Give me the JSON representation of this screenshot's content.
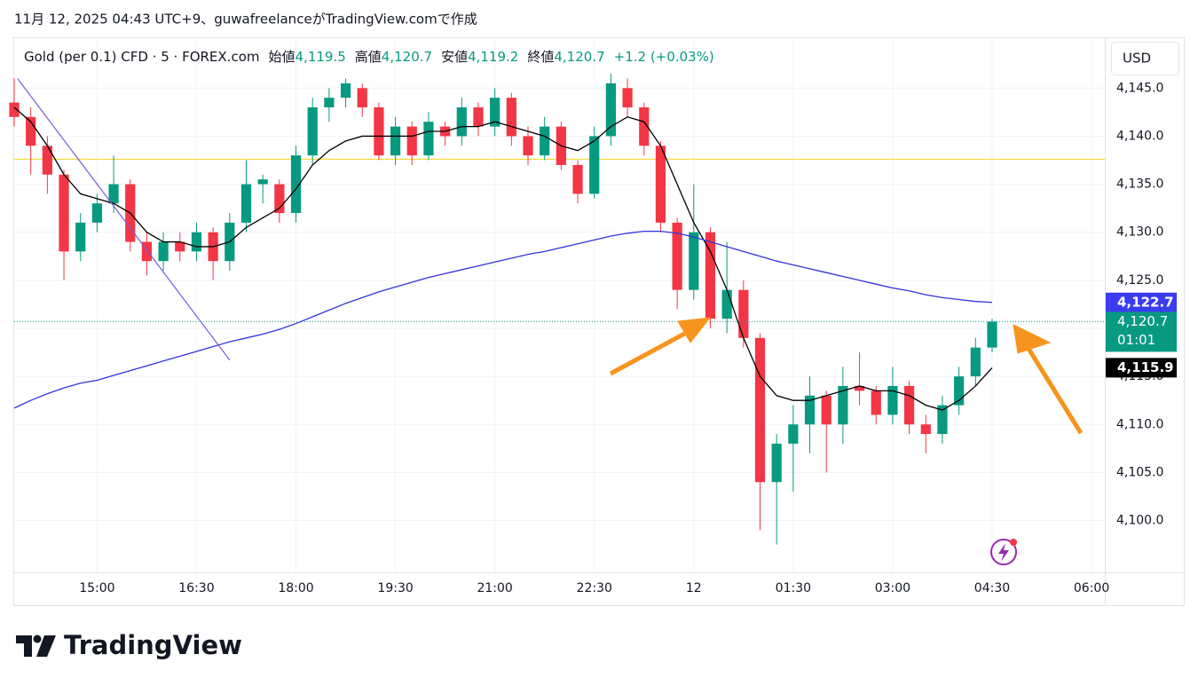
{
  "header": {
    "caption": "11月 12, 2025 04:43 UTC+9、guwafreelanceがTradingView.comで作成"
  },
  "chart_data": {
    "type": "candlestick",
    "title": "Gold (per 0.1) CFD · 5 · FOREX.com",
    "ohlc_legend": [
      {
        "label": "始値",
        "value": "4,119.5"
      },
      {
        "label": "高値",
        "value": "4,120.7"
      },
      {
        "label": "安値",
        "value": "4,119.2"
      },
      {
        "label": "終値",
        "value": "4,120.7"
      }
    ],
    "change": "+1.2 (+0.03%)",
    "currency": "USD",
    "open": [
      4143.5,
      4142,
      4139,
      4136,
      4128,
      4131,
      4133,
      4135,
      4129,
      4127,
      4129,
      4128,
      4130,
      4127,
      4131,
      4135,
      4135,
      4132,
      4138,
      4143,
      4144,
      4145,
      4143,
      4138,
      4141,
      4138,
      4141,
      4140,
      4143,
      4141,
      4144,
      4140,
      4138,
      4141,
      4137,
      4134,
      4140,
      4145,
      4143,
      4139,
      4131,
      4124,
      4130,
      4121,
      4124,
      4119,
      4104,
      4108,
      4110,
      4113,
      4110,
      4114,
      4113.5,
      4111,
      4114,
      4110,
      4109,
      4112,
      4115,
      4118
    ],
    "high": [
      4146,
      4143,
      4140,
      4136.5,
      4132,
      4134,
      4138,
      4135.5,
      4130,
      4130,
      4130,
      4131,
      4130.5,
      4132,
      4137.5,
      4136,
      4135.5,
      4139,
      4144,
      4145,
      4146,
      4145.5,
      4143.5,
      4142,
      4141.5,
      4142.5,
      4141.5,
      4144,
      4143.5,
      4145,
      4144.5,
      4141,
      4142,
      4141.5,
      4137.5,
      4141,
      4146.5,
      4146,
      4143.5,
      4139.5,
      4131.5,
      4135,
      4130.5,
      4129,
      4125,
      4119.5,
      4109,
      4112,
      4115,
      4113.5,
      4116,
      4117.5,
      4114,
      4116,
      4114.5,
      4111,
      4113,
      4116,
      4119,
      4121
    ],
    "low": [
      4141,
      4136,
      4134,
      4125,
      4127,
      4130,
      4132,
      4128,
      4125.5,
      4126,
      4127,
      4127,
      4125,
      4126,
      4130,
      4133,
      4131,
      4131,
      4137,
      4141.5,
      4143,
      4142,
      4137.5,
      4137,
      4137,
      4137.5,
      4139,
      4139,
      4140,
      4140,
      4139,
      4137,
      4137.5,
      4136.5,
      4133,
      4133.5,
      4139,
      4142,
      4138,
      4130,
      4122,
      4123,
      4120,
      4119.5,
      4118,
      4099,
      4097.5,
      4103,
      4107,
      4105,
      4108,
      4112,
      4110,
      4110,
      4109,
      4107,
      4108,
      4111,
      4114,
      4117.5
    ],
    "close": [
      4142,
      4139,
      4136,
      4128,
      4131,
      4133,
      4135,
      4129,
      4127,
      4129,
      4128,
      4130,
      4127,
      4131,
      4135,
      4135.5,
      4132,
      4138,
      4143,
      4144,
      4145.5,
      4143,
      4138,
      4141,
      4138,
      4141.5,
      4140,
      4143,
      4141,
      4144,
      4140,
      4138,
      4141,
      4137,
      4134,
      4140,
      4145.5,
      4143,
      4139,
      4131,
      4124,
      4130,
      4121,
      4124,
      4119,
      4104,
      4108,
      4110,
      4113,
      4110,
      4114,
      4113.5,
      4111,
      4114,
      4110,
      4109,
      4112,
      4115,
      4118,
      4120.7
    ],
    "up_color": "#089981",
    "down_color": "#f23645",
    "lines": [
      {
        "color": "#000000",
        "values": [
          4143,
          4141.5,
          4139,
          4136,
          4134,
          4133.5,
          4133,
          4132,
          4130,
          4129,
          4129,
          4128.5,
          4128.5,
          4129,
          4130.5,
          4131.5,
          4132.5,
          4134.5,
          4137,
          4138.5,
          4139.5,
          4140,
          4140,
          4140,
          4140,
          4140.5,
          4140.5,
          4141,
          4141,
          4141.5,
          4141,
          4140.5,
          4140,
          4139,
          4138.5,
          4139.5,
          4141,
          4142,
          4141.5,
          4139,
          4135,
          4131,
          4128,
          4124,
          4119,
          4115,
          4113,
          4112.5,
          4112.5,
          4113,
          4113.5,
          4114,
          4113.5,
          4113.5,
          4113,
          4112,
          4111.5,
          4112.5,
          4114,
          4115.9
        ]
      },
      {
        "color": "#3333e0",
        "values": [
          4111.7,
          4112.5,
          4113.2,
          4113.8,
          4114.3,
          4114.6,
          4115.1,
          4115.6,
          4116.1,
          4116.6,
          4117.1,
          4117.6,
          4118.1,
          4118.6,
          4119,
          4119.4,
          4119.9,
          4120.5,
          4121.2,
          4121.9,
          4122.6,
          4123.2,
          4123.8,
          4124.3,
          4124.8,
          4125.3,
          4125.7,
          4126.1,
          4126.5,
          4126.9,
          4127.3,
          4127.7,
          4128,
          4128.4,
          4128.8,
          4129.2,
          4129.6,
          4129.9,
          4130.1,
          4130.1,
          4129.9,
          4129.5,
          4129,
          4128.5,
          4128,
          4127.5,
          4127,
          4126.6,
          4126.2,
          4125.8,
          4125.4,
          4125,
          4124.6,
          4124.2,
          4123.9,
          4123.5,
          4123.2,
          4123,
          4122.8,
          4122.7
        ]
      }
    ],
    "hlines": [
      {
        "value": 4137.6,
        "color": "#f2d61c"
      }
    ],
    "trendline": {
      "x": [
        0.2,
        13
      ],
      "y": [
        4146,
        4116.7
      ],
      "color": "#8057d8"
    },
    "price_labels": [
      {
        "value": 4122.7,
        "label": "4,122.7",
        "color": "#3b3bf0"
      },
      {
        "value": 4120.7,
        "label": "4,120.7",
        "sub": "01:01",
        "color": "#089981"
      },
      {
        "value": 4115.9,
        "label": "4,115.9",
        "color": "#000000"
      }
    ],
    "xlim": [
      0,
      65.8
    ],
    "xticks": [
      {
        "value": 5,
        "label": "15:00"
      },
      {
        "value": 11,
        "label": "16:30"
      },
      {
        "value": 17,
        "label": "18:00"
      },
      {
        "value": 23,
        "label": "19:30"
      },
      {
        "value": 29,
        "label": "21:00"
      },
      {
        "value": 35,
        "label": "22:30"
      },
      {
        "value": 41,
        "label": "12"
      },
      {
        "value": 47,
        "label": "01:30"
      },
      {
        "value": 53,
        "label": "03:00"
      },
      {
        "value": 59,
        "label": "04:30"
      },
      {
        "value": 65,
        "label": "06:00"
      }
    ],
    "ylim": [
      4094.6,
      4150.2
    ],
    "yticks": [
      {
        "value": 4100,
        "label": "4,100.0"
      },
      {
        "value": 4105,
        "label": "4,105.0"
      },
      {
        "value": 4110,
        "label": "4,110.0"
      },
      {
        "value": 4115,
        "label": "4,115.0"
      },
      {
        "value": 4120,
        "label": "4,120.0"
      },
      {
        "value": 4125,
        "label": "4,125.0"
      },
      {
        "value": 4130,
        "label": "4,130.0"
      },
      {
        "value": 4135,
        "label": "4,135.0"
      },
      {
        "value": 4140,
        "label": "4,140.0"
      },
      {
        "value": 4145,
        "label": "4,145.0"
      }
    ],
    "grid": true
  },
  "footer": {
    "brand": "TradingView"
  }
}
